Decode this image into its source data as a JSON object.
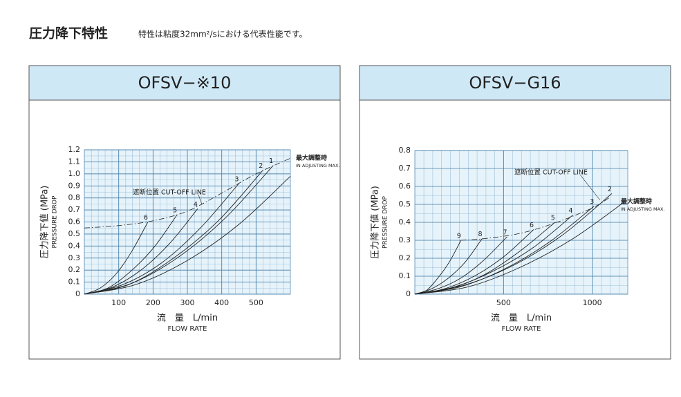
{
  "header": {
    "title": "圧力降下特性",
    "subtitle": "特性は粘度32mm²/sにおける代表性能です。"
  },
  "chart_data": [
    {
      "type": "line",
      "title": "OFSV−※10",
      "y_label": "圧力降下値 (MPa)",
      "y_sublabel": "PRESSURE DROP",
      "x_label": "流　量　L/min",
      "x_sublabel": "FLOW RATE",
      "xlim": [
        0,
        600
      ],
      "ylim": [
        0,
        1.2
      ],
      "xticks": [
        100,
        200,
        300,
        400,
        500
      ],
      "yticks": [
        0,
        0.1,
        0.2,
        0.3,
        0.4,
        0.5,
        0.6,
        0.7,
        0.8,
        0.9,
        {
          "value": 1,
          "label": "1.0"
        },
        1.1,
        1.2
      ],
      "grid": true,
      "color": "#222222",
      "max_label": [
        "最大調整時",
        "IN ADJUSTING MAX."
      ],
      "series": [
        {
          "name": "6",
          "x": [
            0,
            46,
            93,
            139,
            185
          ],
          "values": [
            0,
            0.05,
            0.17,
            0.36,
            0.6
          ]
        },
        {
          "name": "5",
          "x": [
            0,
            68,
            135,
            203,
            270
          ],
          "values": [
            0,
            0.05,
            0.19,
            0.39,
            0.66
          ]
        },
        {
          "name": "4",
          "x": [
            0,
            83,
            165,
            248,
            330
          ],
          "values": [
            0,
            0.06,
            0.2,
            0.42,
            0.71
          ]
        },
        {
          "name": "3",
          "x": [
            0,
            113,
            225,
            338,
            450
          ],
          "values": [
            0,
            0.08,
            0.26,
            0.55,
            0.92
          ]
        },
        {
          "name": "2",
          "x": [
            0,
            130,
            260,
            390,
            520
          ],
          "values": [
            0,
            0.08,
            0.3,
            0.61,
            1.03
          ]
        },
        {
          "name": "1",
          "x": [
            0,
            138,
            275,
            413,
            550
          ],
          "values": [
            0,
            0.09,
            0.31,
            0.64,
            1.07
          ]
        },
        {
          "x": [
            0,
            150,
            300,
            450,
            600
          ],
          "values": [
            0,
            0.08,
            0.28,
            0.58,
            0.98
          ]
        },
        {
          "name": "遮断位置 CUT-OFF LINE",
          "style": "dashdot",
          "x": [
            0,
            100,
            200,
            300,
            400,
            500,
            600
          ],
          "values": [
            0.55,
            0.57,
            0.61,
            0.69,
            0.84,
            1.0,
            1.13
          ]
        }
      ]
    },
    {
      "type": "line",
      "title": "OFSV−G16",
      "y_label": "圧力降下値 (MPa)",
      "y_sublabel": "PRESSURE DROP",
      "x_label": "流　量　L/min",
      "x_sublabel": "FLOW RATE",
      "xlim": [
        0,
        1200
      ],
      "ylim": [
        0,
        0.8
      ],
      "xticks": [
        500,
        1000
      ],
      "yticks": [
        0,
        0.1,
        0.2,
        0.3,
        0.4,
        0.5,
        0.6,
        0.7,
        0.8
      ],
      "grid": true,
      "color": "#222222",
      "max_label": [
        "最大調整時",
        "IN ADJUSTING MAX."
      ],
      "series": [
        {
          "name": "9",
          "x": [
            0,
            65,
            130,
            195,
            260
          ],
          "values": [
            0,
            0.02,
            0.09,
            0.18,
            0.3
          ]
        },
        {
          "name": "8",
          "x": [
            0,
            95,
            190,
            285,
            380
          ],
          "values": [
            0,
            0.03,
            0.09,
            0.18,
            0.31
          ]
        },
        {
          "name": "7",
          "x": [
            0,
            130,
            260,
            390,
            520
          ],
          "values": [
            0,
            0.03,
            0.09,
            0.19,
            0.32
          ]
        },
        {
          "name": "6",
          "x": [
            0,
            168,
            335,
            503,
            670
          ],
          "values": [
            0,
            0.03,
            0.1,
            0.21,
            0.36
          ]
        },
        {
          "name": "5",
          "x": [
            0,
            198,
            395,
            593,
            790
          ],
          "values": [
            0,
            0.03,
            0.11,
            0.24,
            0.4
          ]
        },
        {
          "name": "4",
          "x": [
            0,
            223,
            445,
            668,
            890
          ],
          "values": [
            0,
            0.04,
            0.13,
            0.26,
            0.44
          ]
        },
        {
          "name": "3",
          "x": [
            0,
            253,
            505,
            758,
            1010
          ],
          "values": [
            0,
            0.04,
            0.14,
            0.29,
            0.49
          ]
        },
        {
          "name": "2",
          "x": [
            0,
            278,
            555,
            833,
            1110
          ],
          "values": [
            0,
            0.05,
            0.16,
            0.33,
            0.56
          ]
        },
        {
          "x": [
            0,
            298,
            595,
            893,
            1190
          ],
          "values": [
            0,
            0.04,
            0.15,
            0.31,
            0.52
          ]
        },
        {
          "name": "遮断位置 CUT-OFF LINE",
          "style": "dashdot",
          "x": [
            260,
            400,
            600,
            800,
            1000,
            1100
          ],
          "values": [
            0.3,
            0.31,
            0.34,
            0.4,
            0.48,
            0.54
          ]
        }
      ]
    }
  ]
}
